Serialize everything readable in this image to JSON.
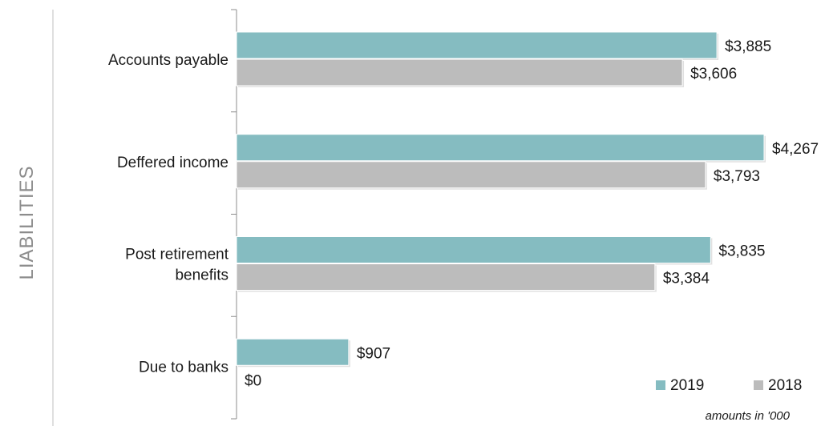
{
  "section_label": "LIABILITIES",
  "note": "amounts in '000",
  "colors": {
    "s2019": "#85bcc1",
    "s2018": "#bcbcbc",
    "axis": "#8c8c8c",
    "divider": "#bfbfbf"
  },
  "chart_data": {
    "type": "bar",
    "orientation": "horizontal",
    "categories": [
      [
        "Accounts payable"
      ],
      [
        "Deffered income"
      ],
      [
        "Post retirement",
        "benefits"
      ],
      [
        "Due to banks"
      ]
    ],
    "series": [
      {
        "name": "2019",
        "values": [
          3885,
          4267,
          3835,
          907
        ],
        "labels": [
          "$3,885",
          "$4,267",
          "$3,835",
          "$907"
        ]
      },
      {
        "name": "2018",
        "values": [
          3606,
          3793,
          3384,
          0
        ],
        "labels": [
          "$3,606",
          "$3,793",
          "$3,384",
          "$0"
        ]
      }
    ],
    "xlim": [
      0,
      4267
    ],
    "legend": "bottom-right",
    "grid": false
  }
}
